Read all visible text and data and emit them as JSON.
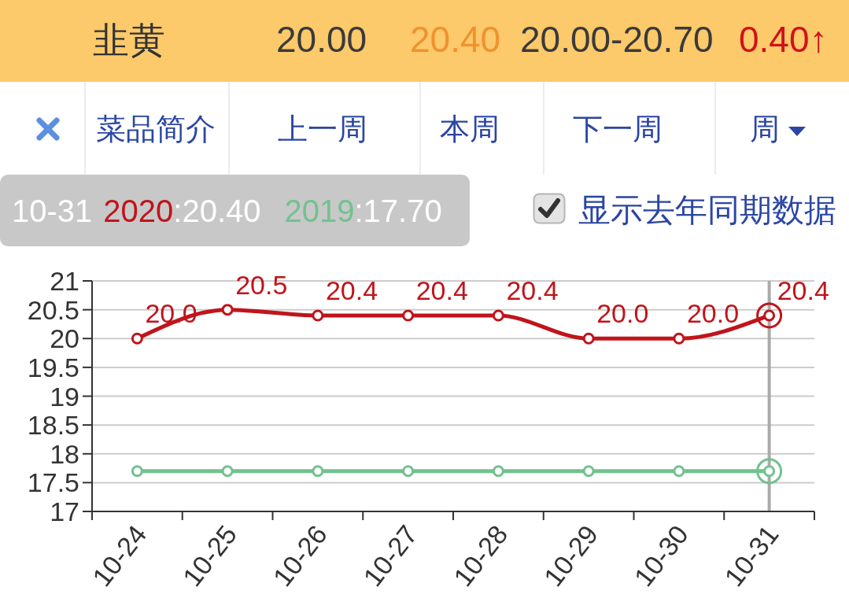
{
  "chart_data": {
    "type": "line",
    "title": "韭黄",
    "categories": [
      "10-24",
      "10-25",
      "10-26",
      "10-27",
      "10-28",
      "10-29",
      "10-30",
      "10-31"
    ],
    "series": [
      {
        "name": "2020",
        "color": "#c0141b",
        "values": [
          20.0,
          20.5,
          20.4,
          20.4,
          20.4,
          20.0,
          20.0,
          20.4
        ],
        "value_labels": [
          "20.0",
          "20.5",
          "20.4",
          "20.4",
          "20.4",
          "20.0",
          "20.0",
          "20.4"
        ]
      },
      {
        "name": "2019",
        "color": "#72c18f",
        "values": [
          17.7,
          17.7,
          17.7,
          17.7,
          17.7,
          17.7,
          17.7,
          17.7
        ]
      }
    ],
    "ylim": [
      17,
      21
    ],
    "yticks": [
      17,
      17.5,
      18,
      18.5,
      19,
      19.5,
      20,
      20.5,
      21
    ],
    "grid": "y",
    "marker": "circle",
    "line_style": "solid",
    "ref_lines": [
      {
        "axis": "x",
        "value": "10-31",
        "color": "#aaaaaa"
      }
    ],
    "annotations": [
      "20.00",
      "20.40",
      "20.00-20.70",
      "0.40↑",
      "菜品简介",
      "上一周",
      "本周",
      "下一周",
      "周",
      "显示去年同期数据",
      ":20.40",
      ":17.70"
    ]
  }
}
